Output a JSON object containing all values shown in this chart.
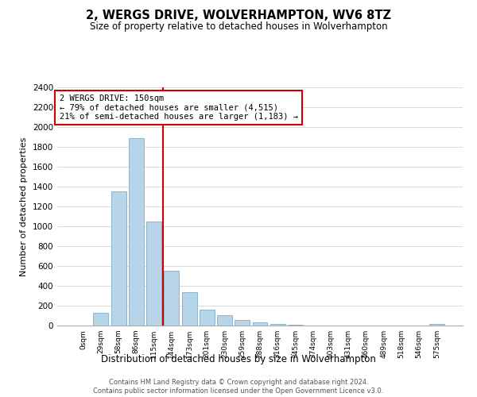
{
  "title": "2, WERGS DRIVE, WOLVERHAMPTON, WV6 8TZ",
  "subtitle": "Size of property relative to detached houses in Wolverhampton",
  "xlabel": "Distribution of detached houses by size in Wolverhampton",
  "ylabel": "Number of detached properties",
  "bar_labels": [
    "0sqm",
    "29sqm",
    "58sqm",
    "86sqm",
    "115sqm",
    "144sqm",
    "173sqm",
    "201sqm",
    "230sqm",
    "259sqm",
    "288sqm",
    "316sqm",
    "345sqm",
    "374sqm",
    "403sqm",
    "431sqm",
    "460sqm",
    "489sqm",
    "518sqm",
    "546sqm",
    "575sqm"
  ],
  "bar_values": [
    0,
    125,
    1350,
    1890,
    1050,
    550,
    340,
    160,
    105,
    60,
    30,
    20,
    5,
    0,
    0,
    0,
    0,
    0,
    0,
    0,
    20
  ],
  "bar_color": "#b8d4e8",
  "bar_edge_color": "#7ab0cc",
  "marker_line_color": "#cc0000",
  "annotation_line1": "2 WERGS DRIVE: 150sqm",
  "annotation_line2": "← 79% of detached houses are smaller (4,515)",
  "annotation_line3": "21% of semi-detached houses are larger (1,183) →",
  "annotation_box_color": "#ffffff",
  "annotation_box_edge": "#cc0000",
  "ylim": [
    0,
    2400
  ],
  "yticks": [
    0,
    200,
    400,
    600,
    800,
    1000,
    1200,
    1400,
    1600,
    1800,
    2000,
    2200,
    2400
  ],
  "footer1": "Contains HM Land Registry data © Crown copyright and database right 2024.",
  "footer2": "Contains public sector information licensed under the Open Government Licence v3.0.",
  "bg_color": "#ffffff",
  "grid_color": "#cccccc"
}
